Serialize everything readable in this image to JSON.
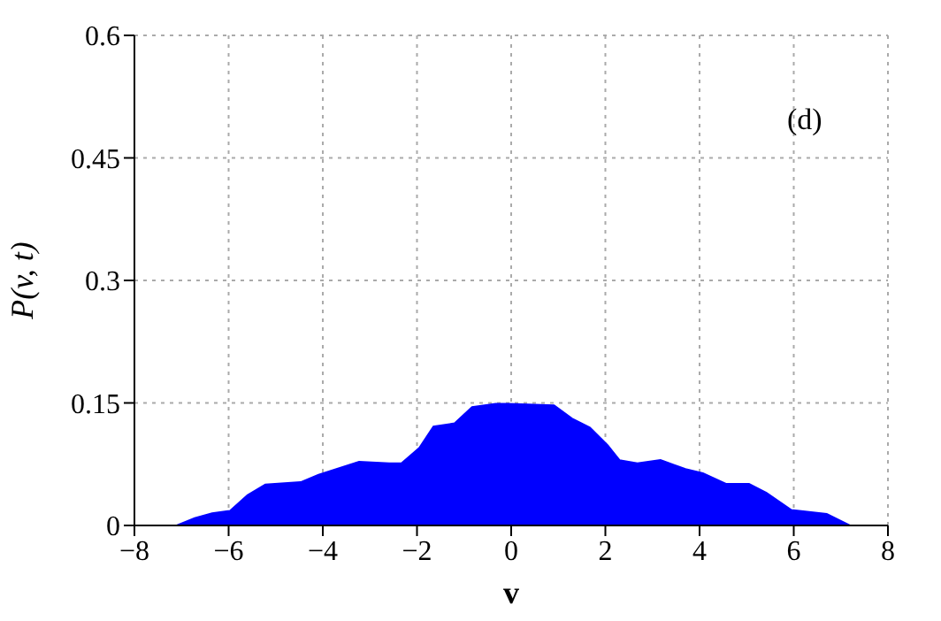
{
  "chart_data": {
    "type": "area",
    "xlabel": "v",
    "ylabel": "P(v, t)",
    "annotations": [
      "(d)"
    ],
    "grid": true,
    "x": [
      -8,
      -7.1,
      -6.72,
      -6.35,
      -5.97,
      -5.6,
      -5.22,
      -4.47,
      -4.09,
      -3.71,
      -3.23,
      -2.59,
      -2.33,
      -1.95,
      -1.65,
      -1.2,
      -0.83,
      -0.33,
      -0.07,
      0.91,
      1.29,
      1.67,
      2.05,
      2.3,
      2.68,
      3.17,
      3.7,
      4.07,
      4.56,
      5.05,
      5.42,
      5.95,
      6.7,
      7.19,
      8
    ],
    "series": [
      {
        "color": "#0000ff",
        "values": [
          0,
          0,
          0.009,
          0.015,
          0.018,
          0.037,
          0.05,
          0.053,
          0.062,
          0.069,
          0.078,
          0.076,
          0.076,
          0.095,
          0.121,
          0.125,
          0.145,
          0.149,
          0.149,
          0.147,
          0.131,
          0.12,
          0.098,
          0.08,
          0.076,
          0.08,
          0.069,
          0.064,
          0.051,
          0.051,
          0.04,
          0.019,
          0.014,
          0,
          0
        ]
      }
    ],
    "xlim": [
      -8,
      8
    ],
    "xticks": [
      -8,
      -6,
      -4,
      -2,
      0,
      2,
      4,
      6,
      8
    ],
    "ylim": [
      0,
      0.6
    ],
    "yticks": [
      0,
      0.15,
      0.3,
      0.45,
      0.6
    ]
  }
}
